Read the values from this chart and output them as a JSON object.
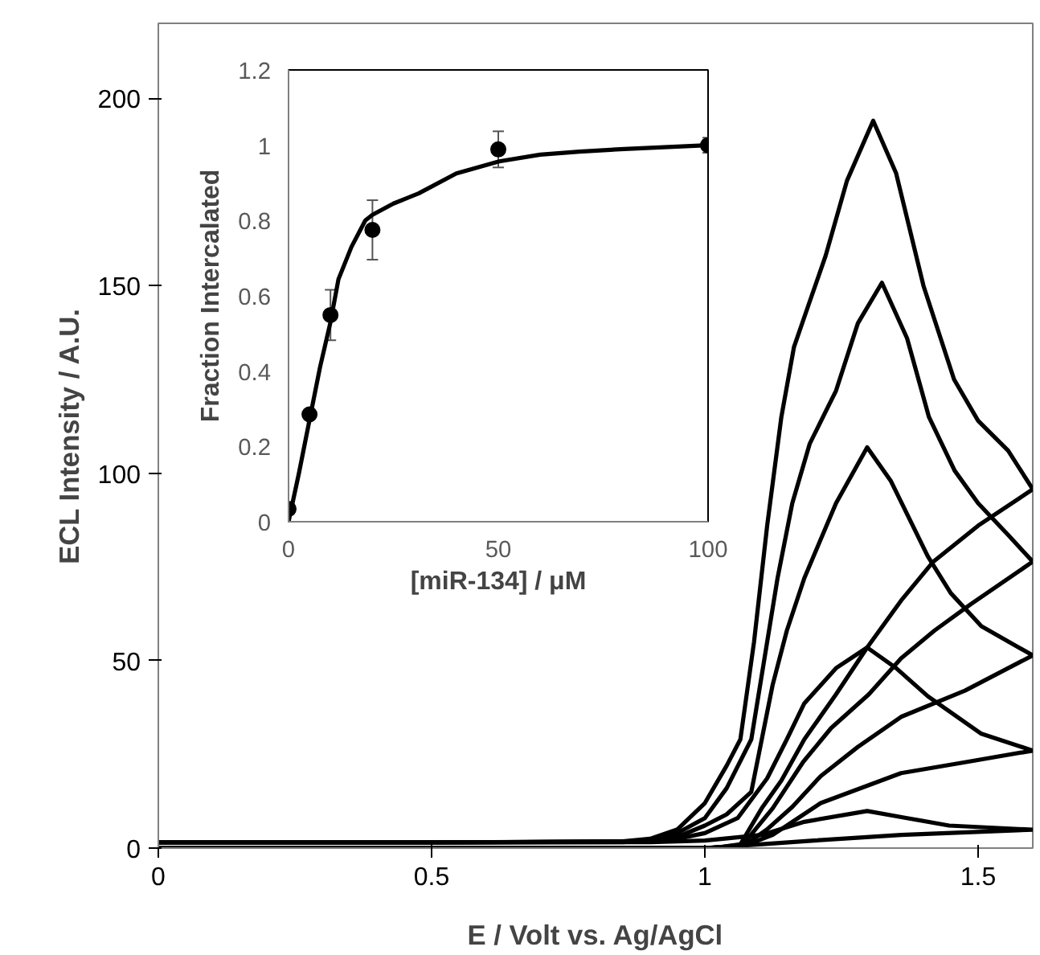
{
  "chart_data": [
    {
      "type": "line",
      "xlabel": "E / Volt vs. Ag/AgCl",
      "ylabel": "ECL Intensity / A.U.",
      "xlim": [
        0,
        1.6
      ],
      "ylim": [
        0,
        220
      ],
      "xticks": [
        0,
        0.5,
        1,
        1.5
      ],
      "yticks": [
        0,
        50,
        100,
        150,
        200
      ],
      "series": [
        {
          "color": "#000000",
          "x": [
            0,
            0.5,
            0.85,
            0.9,
            0.95,
            1.0,
            1.04,
            1.065,
            1.09,
            1.114,
            1.14,
            1.163,
            1.19,
            1.221,
            1.26,
            1.308,
            1.35,
            1.4,
            1.456,
            1.5,
            1.555,
            1.6,
            1.5,
            1.418,
            1.359,
            1.297,
            1.24,
            1.182,
            1.14,
            1.104,
            1.065,
            1.03,
            1.0,
            0.5,
            0
          ],
          "values": [
            1.5,
            1.5,
            1.8,
            2.5,
            5,
            12,
            22,
            29,
            55,
            86,
            115,
            133.6,
            145,
            158,
            178,
            194,
            180,
            150,
            125,
            114,
            106,
            95.7,
            86,
            76.4,
            66,
            53.5,
            41,
            29,
            18,
            10.6,
            1,
            0.3,
            0,
            0,
            0
          ]
        },
        {
          "color": "#000000",
          "x": [
            0,
            0.5,
            0.85,
            0.9,
            0.95,
            1.0,
            1.04,
            1.085,
            1.133,
            1.16,
            1.192,
            1.24,
            1.28,
            1.324,
            1.37,
            1.41,
            1.457,
            1.5,
            1.555,
            1.6,
            1.486,
            1.42,
            1.359,
            1.3,
            1.231,
            1.18,
            1.124,
            1.07,
            1.03,
            1.0,
            0.5,
            0
          ],
          "values": [
            1.5,
            1.5,
            1.7,
            2.2,
            4,
            8,
            16,
            29,
            72,
            92,
            107.9,
            122,
            140,
            150.8,
            136,
            115,
            100.7,
            92,
            83.5,
            76.4,
            65,
            58,
            50.6,
            41,
            32,
            23,
            10.6,
            1,
            0.2,
            0,
            0,
            0
          ]
        },
        {
          "color": "#000000",
          "x": [
            0,
            0.5,
            0.85,
            0.9,
            0.95,
            1.0,
            1.04,
            1.085,
            1.124,
            1.15,
            1.182,
            1.24,
            1.297,
            1.34,
            1.408,
            1.45,
            1.506,
            1.6,
            1.476,
            1.359,
            1.28,
            1.212,
            1.16,
            1.114,
            1.07,
            1.0,
            0.5,
            0
          ],
          "values": [
            1.5,
            1.5,
            1.6,
            2,
            3,
            6,
            9,
            15,
            43.5,
            58,
            72,
            92,
            106.9,
            98,
            77.8,
            68,
            59.2,
            51.4,
            42,
            35,
            27,
            19.2,
            11,
            5,
            0.5,
            0,
            0,
            0
          ]
        },
        {
          "color": "#000000",
          "x": [
            0,
            0.5,
            0.9,
            0.95,
            1.0,
            1.06,
            1.114,
            1.15,
            1.182,
            1.24,
            1.297,
            1.35,
            1.408,
            1.506,
            1.6,
            1.48,
            1.359,
            1.212,
            1.124,
            1.07,
            1.0,
            0.5,
            0
          ],
          "values": [
            1.5,
            1.5,
            1.8,
            2.5,
            4,
            8,
            18.6,
            29,
            38.6,
            48,
            53.5,
            48,
            40.5,
            30.5,
            26,
            23,
            20,
            12,
            3.5,
            0.5,
            0,
            0,
            0
          ]
        },
        {
          "color": "#000000",
          "x": [
            0,
            0.5,
            0.9,
            1.0,
            1.104,
            1.182,
            1.297,
            1.37,
            1.447,
            1.6,
            1.359,
            1.2,
            1.1,
            1.0,
            0.5,
            0
          ],
          "values": [
            1.5,
            1.5,
            1.6,
            2,
            3.5,
            7,
            9.9,
            8,
            6,
            4.9,
            3.5,
            2,
            1,
            0,
            0,
            0
          ]
        }
      ]
    },
    {
      "type": "scatter",
      "xlabel": "[miR-134] / μM",
      "ylabel": "Fraction Intercalated",
      "xlim": [
        0,
        100
      ],
      "ylim": [
        0,
        1.2
      ],
      "xticks": [
        0,
        50,
        100
      ],
      "yticks": [
        0,
        0.2,
        0.4,
        0.6,
        0.8,
        1,
        1.2
      ],
      "marker": "circle",
      "x": [
        0,
        5,
        10,
        20,
        50,
        100
      ],
      "series": [
        {
          "type": "scatter",
          "color": "#000000",
          "values": [
            0.034,
            0.285,
            0.549,
            0.775,
            0.989,
            1.0
          ],
          "errors": [
            null,
            null,
            0.067,
            0.079,
            0.048,
            0.02
          ]
        },
        {
          "type": "line",
          "marker": "none",
          "color": "#000000",
          "x": [
            0,
            2.5,
            5,
            7.5,
            10,
            11.9,
            15,
            18.3,
            20,
            25,
            31,
            40,
            50.2,
            60,
            69.3,
            80,
            100
          ],
          "values": [
            0,
            0.13,
            0.27,
            0.41,
            0.53,
            0.644,
            0.73,
            0.8,
            0.815,
            0.845,
            0.872,
            0.925,
            0.957,
            0.975,
            0.983,
            0.99,
            1.0
          ]
        }
      ]
    }
  ]
}
